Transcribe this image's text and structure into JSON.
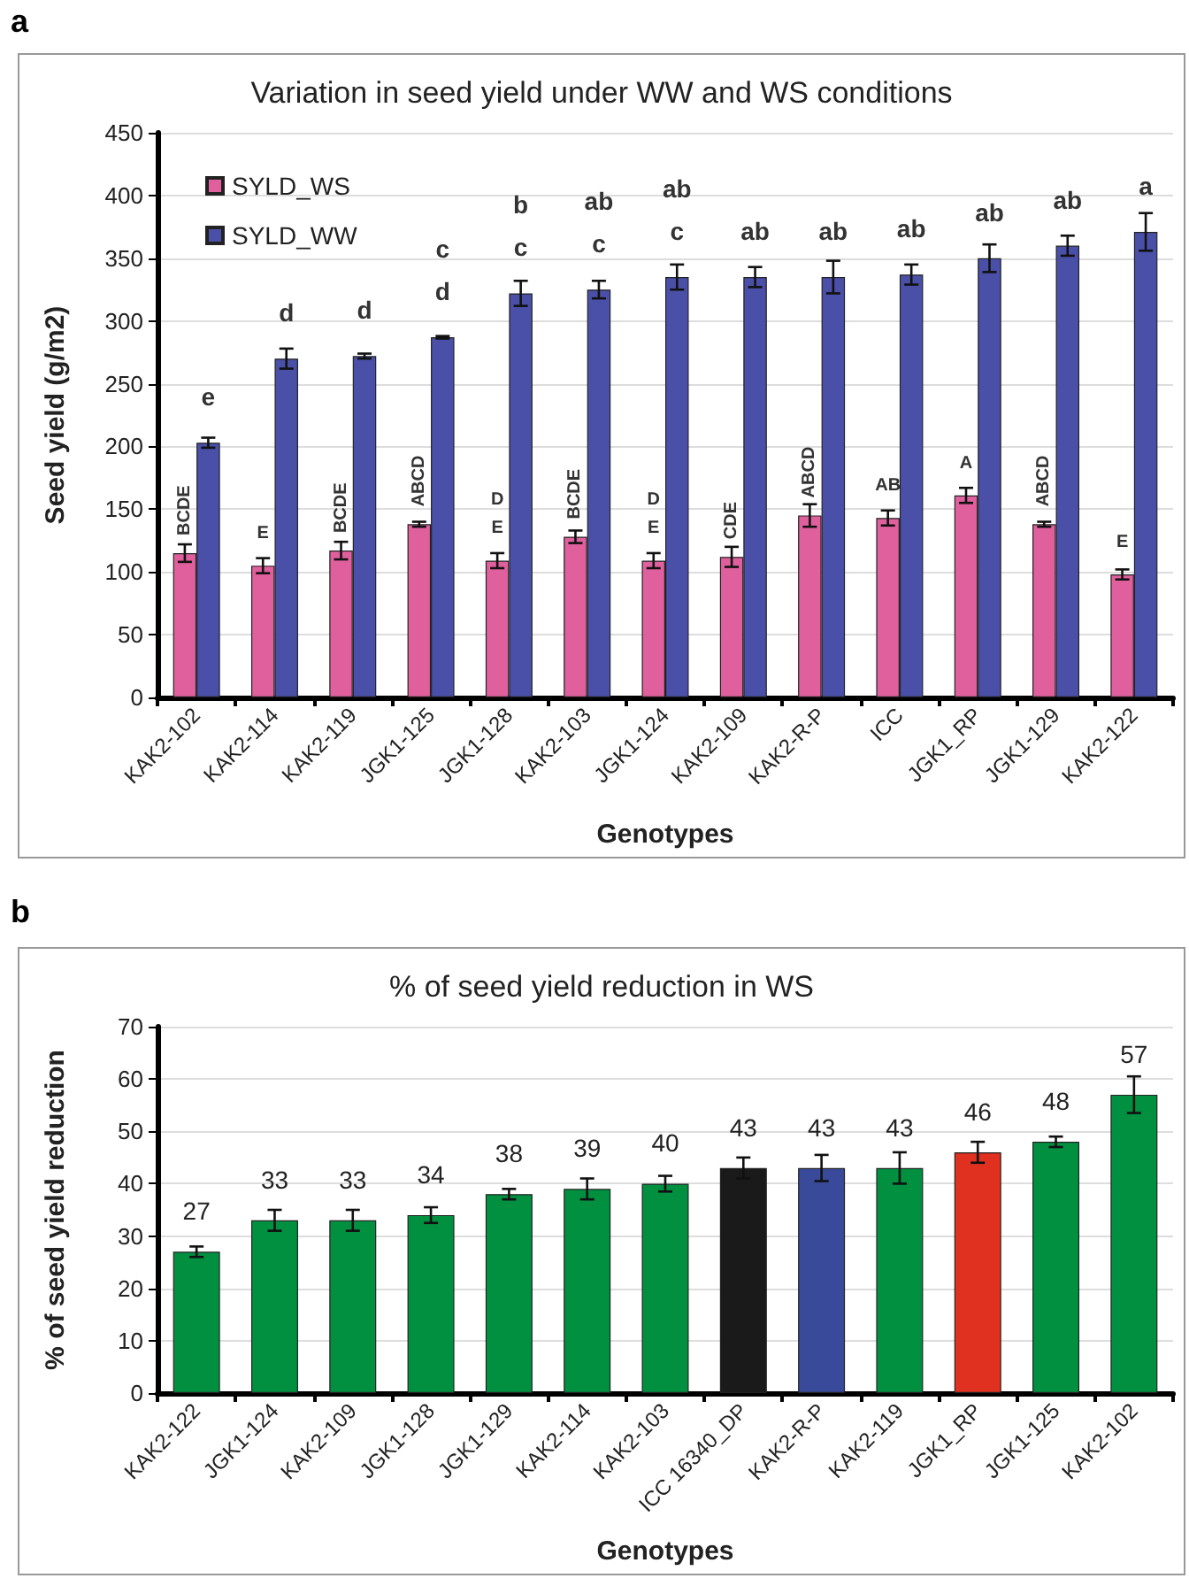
{
  "chart_data": [
    {
      "type": "bar",
      "title": "Variation in seed yield under WW and WS conditions",
      "xlabel": "Genotypes",
      "ylabel": "Seed yield (g/m2)",
      "annotations": [
        "a"
      ],
      "categories": [
        "KAK2-102",
        "KAK2-114",
        "KAK2-119",
        "JGK1-125",
        "JGK1-128",
        "KAK2-103",
        "JGK1-124",
        "KAK2-109",
        "KAK2-R-P",
        "ICC",
        "JGK1_RP",
        "JGK1-129",
        "KAK2-122"
      ],
      "series": [
        {
          "name": "SYLD_WS",
          "color": "#e0609e",
          "values": [
            115,
            105,
            117,
            138,
            109,
            128,
            109,
            112,
            145,
            143,
            161,
            138,
            98
          ],
          "errors": [
            7,
            6,
            7,
            2,
            6,
            5,
            6,
            8,
            9,
            6,
            6,
            2,
            4
          ],
          "value_labels": [
            "BCDE",
            "E",
            "BCDE",
            "ABCD",
            "D\nE",
            "BCDE",
            "D\nE",
            "CDE",
            "ABCD",
            "AB",
            "A",
            "ABCD",
            "E"
          ]
        },
        {
          "name": "SYLD_WW",
          "color": "#4a50a8",
          "values": [
            203,
            270,
            272,
            287,
            322,
            325,
            335,
            335,
            335,
            337,
            350,
            360,
            371
          ],
          "errors": [
            4,
            8,
            2,
            1,
            10,
            7,
            10,
            8,
            13,
            8,
            11,
            8,
            15
          ],
          "value_labels": [
            "e",
            "d",
            "d",
            "c\nd",
            "b\nc",
            "ab\nc",
            "ab\nc",
            "ab",
            "ab",
            "ab",
            "ab",
            "ab",
            "a"
          ]
        }
      ],
      "ylim": [
        0,
        450
      ],
      "yticks": [
        0,
        50,
        100,
        150,
        200,
        250,
        300,
        350,
        400,
        450
      ],
      "grid": "y",
      "legend": "top left"
    },
    {
      "type": "bar",
      "title": "% of seed yield reduction in WS",
      "xlabel": "Genotypes",
      "ylabel": "% of seed yield reduction",
      "annotations": [
        "b"
      ],
      "categories": [
        "KAK2-122",
        "JGK1-124",
        "KAK2-109",
        "JGK1-128",
        "JGK1-129",
        "KAK2-114",
        "KAK2-103",
        "ICC 16340_DP",
        "KAK2-R-P",
        "KAK2-119",
        "JGK1_RP",
        "JGK1-125",
        "KAK2-102"
      ],
      "values": [
        27,
        33,
        33,
        34,
        38,
        39,
        40,
        43,
        43,
        43,
        46,
        48,
        57
      ],
      "errors": [
        1,
        2,
        2,
        1.5,
        1,
        2,
        1.5,
        2,
        2.5,
        3,
        2,
        1,
        3.5
      ],
      "colors": [
        "#009040",
        "#009040",
        "#009040",
        "#009040",
        "#009040",
        "#009040",
        "#009040",
        "#1a1a1a",
        "#3a4a9a",
        "#009040",
        "#e03020",
        "#009040",
        "#009040"
      ],
      "data_labels": true,
      "ylim": [
        0,
        70
      ],
      "yticks": [
        0,
        10,
        20,
        30,
        40,
        50,
        60,
        70
      ],
      "grid": "y"
    }
  ]
}
